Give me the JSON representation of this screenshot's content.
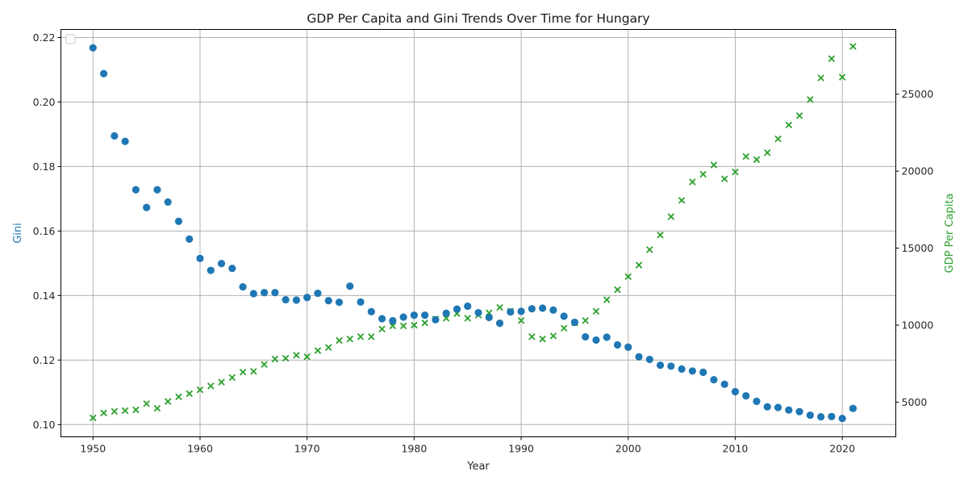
{
  "chart_data": {
    "type": "scatter",
    "title": "GDP Per Capita and Gini Trends Over Time for Hungary",
    "xlabel": "Year",
    "ylabel_left": "Gini",
    "ylabel_right": "GDP Per Capita",
    "xlim": [
      1947,
      2025
    ],
    "ylim_left": [
      0.0962,
      0.2225
    ],
    "ylim_right": [
      2750,
      29200
    ],
    "x_ticks": [
      1950,
      1960,
      1970,
      1980,
      1990,
      2000,
      2010,
      2020
    ],
    "y_ticks_left": [
      0.1,
      0.12,
      0.14,
      0.16,
      0.18,
      0.2,
      0.22
    ],
    "y_ticks_left_labels": [
      "0.10",
      "0.12",
      "0.14",
      "0.16",
      "0.18",
      "0.20",
      "0.22"
    ],
    "y_ticks_right": [
      5000,
      10000,
      15000,
      20000,
      25000
    ],
    "grid": true,
    "legend": "top-left (empty)",
    "colors": {
      "gini": "#1f77b4",
      "gdp": "#2ca02c"
    },
    "x": [
      1950,
      1951,
      1952,
      1953,
      1954,
      1955,
      1956,
      1957,
      1958,
      1959,
      1960,
      1961,
      1962,
      1963,
      1964,
      1965,
      1966,
      1967,
      1968,
      1969,
      1970,
      1971,
      1972,
      1973,
      1974,
      1975,
      1976,
      1977,
      1978,
      1979,
      1980,
      1981,
      1982,
      1983,
      1984,
      1985,
      1986,
      1987,
      1988,
      1989,
      1990,
      1991,
      1992,
      1993,
      1994,
      1995,
      1996,
      1997,
      1998,
      1999,
      2000,
      2001,
      2002,
      2003,
      2004,
      2005,
      2006,
      2007,
      2008,
      2009,
      2010,
      2011,
      2012,
      2013,
      2014,
      2015,
      2016,
      2017,
      2018,
      2019,
      2020,
      2021
    ],
    "series": [
      {
        "axis": "left",
        "marker": "circle",
        "values": [
          0.2168,
          0.2088,
          0.1895,
          0.1878,
          0.1728,
          0.1673,
          0.1728,
          0.169,
          0.163,
          0.1575,
          0.1515,
          0.1478,
          0.1499,
          0.1484,
          0.1427,
          0.1406,
          0.1409,
          0.1409,
          0.1387,
          0.1386,
          0.1394,
          0.1407,
          0.1384,
          0.1379,
          0.1429,
          0.138,
          0.135,
          0.1328,
          0.1322,
          0.1333,
          0.1339,
          0.1339,
          0.1325,
          0.1345,
          0.1358,
          0.1367,
          0.1347,
          0.1332,
          0.1314,
          0.1349,
          0.1351,
          0.1359,
          0.1361,
          0.1355,
          0.1336,
          0.1317,
          0.1272,
          0.1262,
          0.1271,
          0.1247,
          0.124,
          0.121,
          0.1202,
          0.1184,
          0.1181,
          0.1172,
          0.1166,
          0.1162,
          0.1139,
          0.1125,
          0.1102,
          0.1089,
          0.1072,
          0.1055,
          0.1053,
          0.1045,
          0.104,
          0.1029,
          0.1024,
          0.1025,
          0.1019,
          0.105
        ]
      },
      {
        "axis": "right",
        "marker": "x",
        "values": [
          3980,
          4300,
          4400,
          4450,
          4500,
          4900,
          4600,
          5050,
          5350,
          5550,
          5800,
          6050,
          6300,
          6600,
          6950,
          7000,
          7450,
          7800,
          7850,
          8050,
          7950,
          8350,
          8550,
          9000,
          9100,
          9250,
          9250,
          9750,
          9950,
          9950,
          10000,
          10150,
          10400,
          10450,
          10750,
          10450,
          10650,
          10800,
          11150,
          10900,
          10300,
          9250,
          9100,
          9300,
          9800,
          10150,
          10300,
          10900,
          11650,
          12300,
          13150,
          13900,
          14900,
          15850,
          17050,
          18100,
          19300,
          19800,
          20400,
          19500,
          19950,
          20950,
          20750,
          21200,
          22100,
          23000,
          23600,
          24650,
          26050,
          27300,
          26100,
          28100
        ]
      }
    ]
  }
}
